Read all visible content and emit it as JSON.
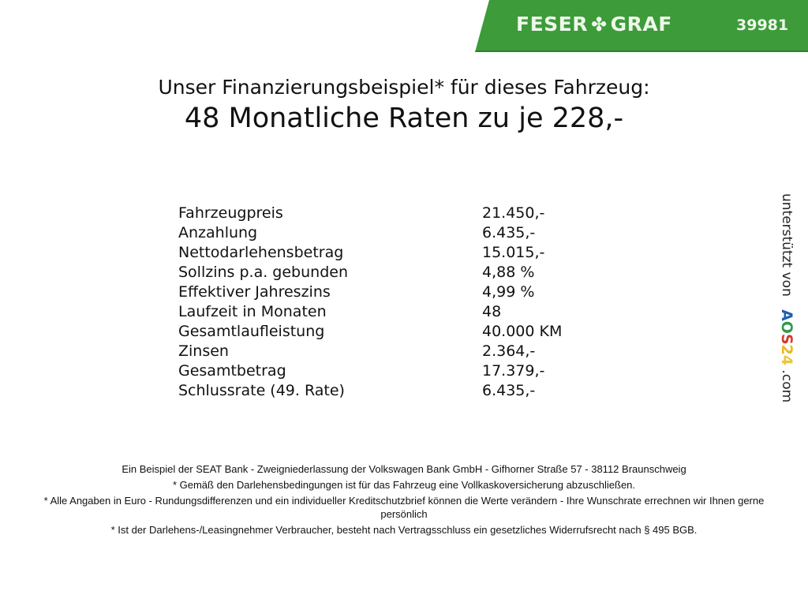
{
  "header": {
    "brand": "FESER",
    "brand2": "GRAF",
    "brand_icon": "clover-icon",
    "code": "39981",
    "color": "#3d9b3a"
  },
  "title": {
    "line1": "Unser Finanzierungsbeispiel* für dieses Fahrzeug:",
    "line2": "48 Monatliche Raten zu je 228,-"
  },
  "details": [
    {
      "label": "Fahrzeugpreis",
      "value": "21.450,-"
    },
    {
      "label": "Anzahlung",
      "value": "6.435,-"
    },
    {
      "label": "Nettodarlehensbetrag",
      "value": "15.015,-"
    },
    {
      "label": "Sollzins p.a. gebunden",
      "value": "4,88 %"
    },
    {
      "label": "Effektiver Jahreszins",
      "value": "4,99 %"
    },
    {
      "label": "Laufzeit in Monaten",
      "value": "48"
    },
    {
      "label": "Gesamtlaufleistung",
      "value": "40.000 KM"
    },
    {
      "label": "Zinsen",
      "value": "2.364,-"
    },
    {
      "label": "Gesamtbetrag",
      "value": "17.379,-"
    },
    {
      "label": "Schlussrate (49. Rate)",
      "value": "6.435,-"
    }
  ],
  "side": {
    "text": "unterstützt von",
    "logo": "AOS24",
    "suffix": ".com"
  },
  "footer": [
    "Ein Beispiel der SEAT Bank - Zweigniederlassung der Volkswagen Bank GmbH - Gifhorner Straße 57 - 38112 Braunschweig",
    "* Gemäß den Darlehensbedingungen ist für das Fahrzeug eine Vollkaskoversicherung abzuschließen.",
    "* Alle Angaben in Euro - Rundungsdifferenzen und ein individueller Kreditschutzbrief können die Werte verändern - Ihre Wunschrate errechnen wir Ihnen gerne persönlich",
    "* Ist der Darlehens-/Leasingnehmer Verbraucher, besteht nach Vertragsschluss ein gesetzliches Widerrufsrecht nach § 495 BGB."
  ]
}
